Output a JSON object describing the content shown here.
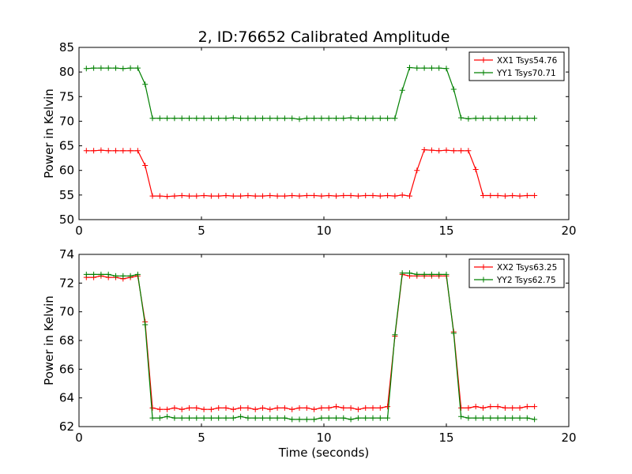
{
  "figure": {
    "title": "2, ID:76652 Calibrated Amplitude",
    "xlabel": "Time (seconds)"
  },
  "chart_data": [
    {
      "type": "line",
      "ylabel": "Power in Kelvin",
      "xlim": [
        0,
        20
      ],
      "ylim": [
        50,
        85
      ],
      "xticks": [
        0,
        5,
        10,
        15,
        20
      ],
      "yticks": [
        50,
        55,
        60,
        65,
        70,
        75,
        80,
        85
      ],
      "legend_position": "top-right",
      "grid": false,
      "x": [
        0.3,
        0.6,
        0.9,
        1.2,
        1.5,
        1.8,
        2.1,
        2.4,
        2.7,
        3.0,
        3.3,
        3.6,
        3.9,
        4.2,
        4.5,
        4.8,
        5.1,
        5.4,
        5.7,
        6.0,
        6.3,
        6.6,
        6.9,
        7.2,
        7.5,
        7.8,
        8.1,
        8.4,
        8.7,
        9.0,
        9.3,
        9.6,
        9.9,
        10.2,
        10.5,
        10.8,
        11.1,
        11.4,
        11.7,
        12.0,
        12.3,
        12.6,
        12.9,
        13.2,
        13.5,
        13.8,
        14.1,
        14.4,
        14.7,
        15.0,
        15.3,
        15.6,
        15.9,
        16.2,
        16.5,
        16.8,
        17.1,
        17.4,
        17.7,
        18.0,
        18.3,
        18.6
      ],
      "series": [
        {
          "name": "XX1 Tsys54.76",
          "color": "#ff0000",
          "values": [
            64.0,
            64.0,
            64.1,
            64.0,
            64.0,
            64.0,
            64.0,
            64.0,
            61.0,
            54.8,
            54.8,
            54.7,
            54.8,
            54.9,
            54.8,
            54.8,
            54.9,
            54.8,
            54.8,
            54.9,
            54.8,
            54.8,
            54.9,
            54.8,
            54.8,
            54.9,
            54.8,
            54.8,
            54.9,
            54.8,
            54.9,
            54.9,
            54.8,
            54.9,
            54.8,
            54.9,
            54.9,
            54.8,
            54.9,
            54.9,
            54.8,
            54.9,
            54.8,
            55.0,
            54.8,
            60.0,
            64.2,
            64.1,
            64.0,
            64.1,
            64.0,
            64.0,
            64.0,
            60.2,
            54.9,
            54.9,
            54.9,
            54.8,
            54.9,
            54.8,
            54.9,
            54.9
          ]
        },
        {
          "name": "YY1 Tsys70.71",
          "color": "#008000",
          "values": [
            80.7,
            80.8,
            80.8,
            80.8,
            80.8,
            80.7,
            80.8,
            80.8,
            77.5,
            70.6,
            70.6,
            70.6,
            70.6,
            70.6,
            70.6,
            70.6,
            70.6,
            70.6,
            70.6,
            70.6,
            70.7,
            70.6,
            70.6,
            70.6,
            70.6,
            70.6,
            70.6,
            70.6,
            70.6,
            70.4,
            70.6,
            70.6,
            70.6,
            70.6,
            70.6,
            70.6,
            70.7,
            70.6,
            70.6,
            70.6,
            70.6,
            70.6,
            70.6,
            76.3,
            80.9,
            80.8,
            80.8,
            80.8,
            80.8,
            80.7,
            76.5,
            70.7,
            70.5,
            70.6,
            70.6,
            70.6,
            70.6,
            70.6,
            70.6,
            70.6,
            70.6,
            70.6
          ]
        }
      ]
    },
    {
      "type": "line",
      "ylabel": "Power in Kelvin",
      "xlim": [
        0,
        20
      ],
      "ylim": [
        62,
        74
      ],
      "xticks": [
        0,
        5,
        10,
        15,
        20
      ],
      "yticks": [
        62,
        64,
        66,
        68,
        70,
        72,
        74
      ],
      "legend_position": "top-right",
      "grid": false,
      "x": [
        0.3,
        0.6,
        0.9,
        1.2,
        1.5,
        1.8,
        2.1,
        2.4,
        2.7,
        3.0,
        3.3,
        3.6,
        3.9,
        4.2,
        4.5,
        4.8,
        5.1,
        5.4,
        5.7,
        6.0,
        6.3,
        6.6,
        6.9,
        7.2,
        7.5,
        7.8,
        8.1,
        8.4,
        8.7,
        9.0,
        9.3,
        9.6,
        9.9,
        10.2,
        10.5,
        10.8,
        11.1,
        11.4,
        11.7,
        12.0,
        12.3,
        12.6,
        12.9,
        13.2,
        13.5,
        13.8,
        14.1,
        14.4,
        14.7,
        15.0,
        15.3,
        15.6,
        15.9,
        16.2,
        16.5,
        16.8,
        17.1,
        17.4,
        17.7,
        18.0,
        18.3,
        18.6
      ],
      "series": [
        {
          "name": "XX2 Tsys63.25",
          "color": "#ff0000",
          "values": [
            72.4,
            72.4,
            72.5,
            72.4,
            72.4,
            72.3,
            72.4,
            72.5,
            69.3,
            63.3,
            63.2,
            63.2,
            63.3,
            63.2,
            63.3,
            63.3,
            63.2,
            63.2,
            63.3,
            63.3,
            63.2,
            63.3,
            63.3,
            63.2,
            63.3,
            63.2,
            63.3,
            63.3,
            63.2,
            63.3,
            63.3,
            63.2,
            63.3,
            63.3,
            63.4,
            63.3,
            63.3,
            63.2,
            63.3,
            63.3,
            63.3,
            63.4,
            68.3,
            72.6,
            72.5,
            72.5,
            72.5,
            72.5,
            72.5,
            72.5,
            68.6,
            63.3,
            63.3,
            63.4,
            63.3,
            63.4,
            63.4,
            63.3,
            63.3,
            63.3,
            63.4,
            63.4
          ]
        },
        {
          "name": "YY2 Tsys62.75",
          "color": "#008000",
          "values": [
            72.6,
            72.6,
            72.6,
            72.6,
            72.5,
            72.5,
            72.5,
            72.6,
            69.1,
            62.6,
            62.6,
            62.7,
            62.6,
            62.6,
            62.6,
            62.6,
            62.6,
            62.6,
            62.6,
            62.6,
            62.6,
            62.7,
            62.6,
            62.6,
            62.6,
            62.6,
            62.6,
            62.6,
            62.5,
            62.5,
            62.5,
            62.5,
            62.6,
            62.6,
            62.6,
            62.6,
            62.5,
            62.6,
            62.6,
            62.6,
            62.6,
            62.6,
            68.4,
            72.7,
            72.7,
            72.6,
            72.6,
            72.6,
            72.6,
            72.6,
            68.5,
            62.7,
            62.6,
            62.6,
            62.6,
            62.6,
            62.6,
            62.6,
            62.6,
            62.6,
            62.6,
            62.5
          ]
        }
      ]
    }
  ]
}
